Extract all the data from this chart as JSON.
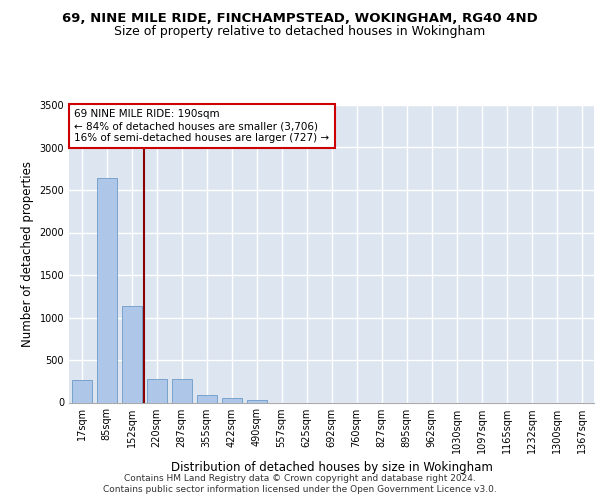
{
  "title_line1": "69, NINE MILE RIDE, FINCHAMPSTEAD, WOKINGHAM, RG40 4ND",
  "title_line2": "Size of property relative to detached houses in Wokingham",
  "xlabel": "Distribution of detached houses by size in Wokingham",
  "ylabel": "Number of detached properties",
  "categories": [
    "17sqm",
    "85sqm",
    "152sqm",
    "220sqm",
    "287sqm",
    "355sqm",
    "422sqm",
    "490sqm",
    "557sqm",
    "625sqm",
    "692sqm",
    "760sqm",
    "827sqm",
    "895sqm",
    "962sqm",
    "1030sqm",
    "1097sqm",
    "1165sqm",
    "1232sqm",
    "1300sqm",
    "1367sqm"
  ],
  "values": [
    270,
    2640,
    1140,
    280,
    275,
    90,
    55,
    35,
    0,
    0,
    0,
    0,
    0,
    0,
    0,
    0,
    0,
    0,
    0,
    0,
    0
  ],
  "bar_color": "#aec6e8",
  "bar_edge_color": "#5a8fc0",
  "vline_color": "#8b0000",
  "annotation_text": "69 NINE MILE RIDE: 190sqm\n← 84% of detached houses are smaller (3,706)\n16% of semi-detached houses are larger (727) →",
  "annotation_box_edgecolor": "#cc0000",
  "annotation_box_facecolor": "white",
  "ylim": [
    0,
    3500
  ],
  "yticks": [
    0,
    500,
    1000,
    1500,
    2000,
    2500,
    3000,
    3500
  ],
  "footer_line1": "Contains HM Land Registry data © Crown copyright and database right 2024.",
  "footer_line2": "Contains public sector information licensed under the Open Government Licence v3.0.",
  "background_color": "#dde6f0",
  "grid_color": "white",
  "title_fontsize": 9.5,
  "subtitle_fontsize": 9,
  "axis_label_fontsize": 8.5,
  "tick_fontsize": 7,
  "annotation_fontsize": 7.5,
  "footer_fontsize": 6.5
}
